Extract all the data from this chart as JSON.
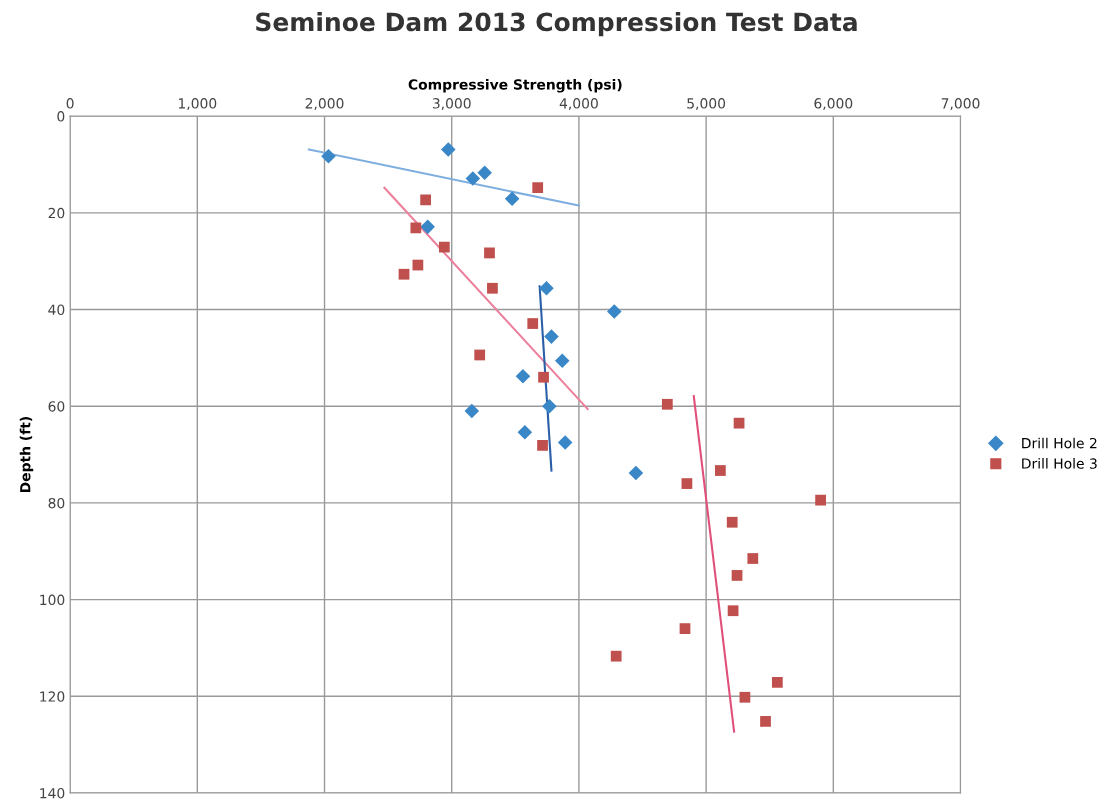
{
  "chart_data": {
    "type": "scatter",
    "title": "Seminoe Dam 2013 Compression Test Data",
    "xlabel": "Compressive Strength (psi)",
    "ylabel": "Depth (ft)",
    "xlim": [
      0,
      7000
    ],
    "xticks": [
      {
        "value": 0,
        "label": "0"
      },
      {
        "value": 1000,
        "label": "1,000"
      },
      {
        "value": 2000,
        "label": "2,000"
      },
      {
        "value": 3000,
        "label": "3,000"
      },
      {
        "value": 4000,
        "label": "4,000"
      },
      {
        "value": 5000,
        "label": "5,000"
      },
      {
        "value": 6000,
        "label": "6,000"
      },
      {
        "value": 7000,
        "label": "7,000"
      }
    ],
    "ylim": [
      140,
      0
    ],
    "yticks": [
      0,
      20,
      40,
      60,
      80,
      100,
      120,
      140
    ],
    "grid": true,
    "legend": "right",
    "series": [
      {
        "name": "Drill Hole 2",
        "marker": "diamond",
        "color": "#3a87c8",
        "x": [
          2031,
          2973,
          3166,
          3259,
          3475,
          2811,
          3745,
          4278,
          3784,
          3869,
          3560,
          3768,
          3158,
          3575,
          3892,
          4448
        ],
        "values": [
          8.3,
          6.9,
          12.9,
          11.7,
          17.1,
          22.9,
          35.6,
          40.4,
          45.6,
          50.6,
          53.8,
          60,
          61,
          65.4,
          67.5,
          73.8
        ]
      },
      {
        "name": "Drill Hole 3",
        "marker": "square",
        "color": "#c0504d",
        "x": [
          3676,
          2795,
          2718,
          2942,
          3297,
          2734,
          2625,
          3320,
          3637,
          3220,
          3722,
          4695,
          3714,
          5259,
          5112,
          4849,
          5900,
          5205,
          5367,
          5243,
          5212,
          4834,
          4293,
          5560,
          5305,
          5467
        ],
        "values": [
          14.8,
          17.3,
          23.1,
          27.1,
          28.3,
          30.8,
          32.7,
          35.6,
          42.9,
          49.4,
          54,
          59.6,
          68.1,
          63.5,
          73.3,
          76,
          79.4,
          84,
          91.5,
          95,
          102.3,
          106,
          111.7,
          117.1,
          120.2,
          125.2
        ]
      },
      {
        "type": "line",
        "marker": "none",
        "color": "#7eaee0",
        "x": [
          1877,
          4000
        ],
        "values": [
          6.9,
          18.5
        ]
      },
      {
        "type": "line",
        "marker": "none",
        "color": "#ec7f9c",
        "x": [
          2471,
          4069
        ],
        "values": [
          14.8,
          60.6
        ]
      },
      {
        "type": "line",
        "marker": "none",
        "color": "#2a5fa8",
        "x": [
          3691,
          3784
        ],
        "values": [
          35.2,
          73.3
        ]
      },
      {
        "type": "line",
        "marker": "none",
        "color": "#e0507a",
        "x": [
          4903,
          5220
        ],
        "values": [
          57.9,
          127.3
        ]
      }
    ]
  }
}
